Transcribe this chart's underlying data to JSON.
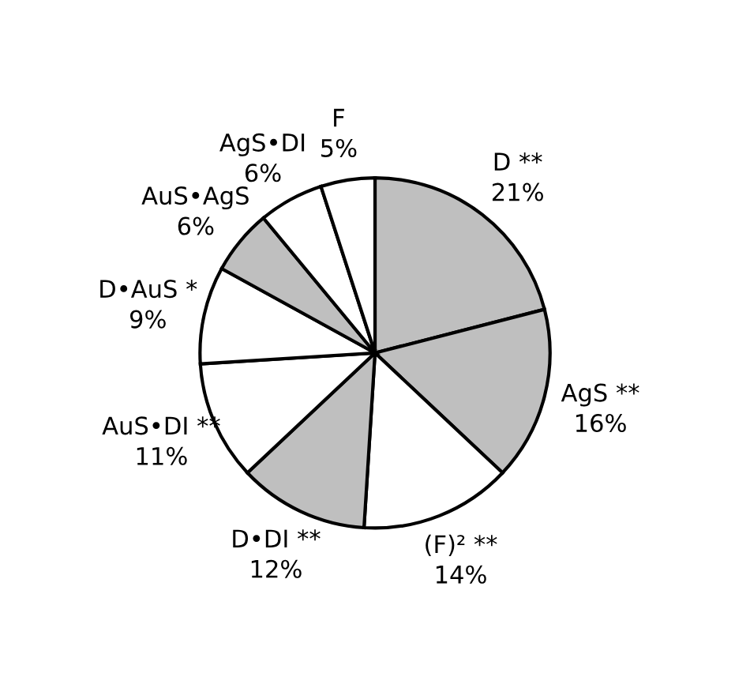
{
  "chart_data": {
    "type": "pie",
    "categories": [
      "D **",
      "AgS **",
      "(F)² **",
      "D•DI **",
      "AuS•DI **",
      "D•AuS *",
      "AuS•AgS",
      "AgS•DI",
      "F"
    ],
    "values": [
      21,
      16,
      14,
      12,
      11,
      9,
      6,
      6,
      5
    ],
    "value_labels": [
      "21%",
      "16%",
      "14%",
      "12%",
      "11%",
      "9%",
      "6%",
      "6%",
      "5%"
    ],
    "colors": [
      "#bfbfbf",
      "#bfbfbf",
      "#ffffff",
      "#bfbfbf",
      "#ffffff",
      "#ffffff",
      "#bfbfbf",
      "#ffffff",
      "#ffffff"
    ]
  }
}
